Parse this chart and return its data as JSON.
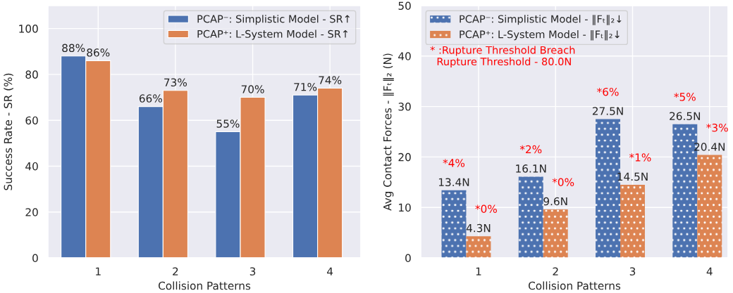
{
  "chart_data": [
    {
      "type": "bar",
      "xlabel": "Collision Patterns",
      "ylabel": "Success Rate - SR (%)",
      "categories": [
        "1",
        "2",
        "3",
        "4"
      ],
      "series": [
        {
          "name": "PCAP⁻: Simplistic Model - SR↑",
          "color": "#4c72b0",
          "values": [
            88,
            66,
            55,
            71
          ],
          "value_labels": [
            "88%",
            "66%",
            "55%",
            "71%"
          ]
        },
        {
          "name": "PCAP⁺: L-System Model - SR↑",
          "color": "#dd8452",
          "values": [
            86,
            73,
            70,
            74
          ],
          "value_labels": [
            "86%",
            "73%",
            "70%",
            "74%"
          ]
        }
      ],
      "ylim": [
        0,
        110
      ],
      "yticks": [
        0,
        20,
        40,
        60,
        80,
        100
      ],
      "grid": true,
      "legend": "top right"
    },
    {
      "type": "bar",
      "xlabel": "Collision Patterns",
      "ylabel": "Avg Contact Forces - ‖Fₜ‖₂ (N)",
      "categories": [
        "1",
        "2",
        "3",
        "4"
      ],
      "series": [
        {
          "name": "PCAP⁻: Simplistic Model - ‖Fₜ‖₂↓",
          "color": "#4c72b0",
          "values": [
            13.4,
            16.1,
            27.5,
            26.5
          ],
          "value_labels": [
            "13.4N",
            "16.1N",
            "27.5N",
            "26.5N"
          ]
        },
        {
          "name": "PCAP⁺: L-System Model - ‖Fₜ‖₂↓",
          "color": "#dd8452",
          "values": [
            4.3,
            9.6,
            14.5,
            20.4
          ],
          "value_labels": [
            "4.3N",
            "9.6N",
            "14.5N",
            "20.4N"
          ]
        }
      ],
      "ylim": [
        0,
        50
      ],
      "yticks": [
        0,
        10,
        20,
        30,
        40,
        50
      ],
      "grid": true,
      "legend": "top left",
      "annotations": [
        "* :Rupture Threshold Breach\n  Rupture Threshold - 80.0N",
        "*4%",
        "*0%",
        "*2%",
        "*0%",
        "*6%",
        "*1%",
        "*5%",
        "*3%"
      ]
    }
  ]
}
